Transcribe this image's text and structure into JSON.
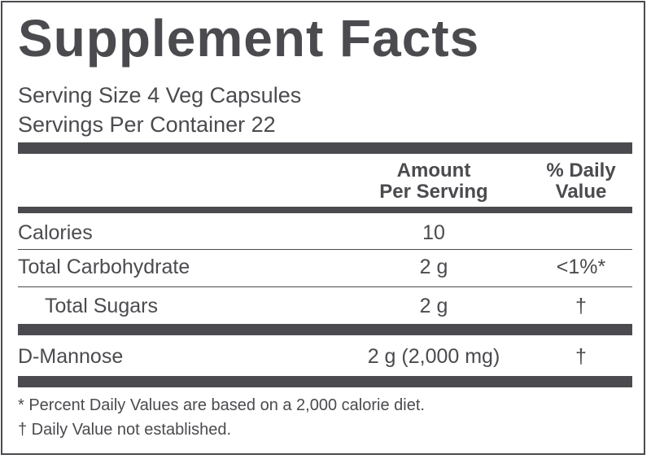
{
  "title": "Supplement Facts",
  "serving_size": "Serving Size 4 Veg Capsules",
  "servings_per_container": "Servings Per Container 22",
  "header": {
    "amount_line1": "Amount",
    "amount_line2": "Per Serving",
    "dv_line1": "% Daily",
    "dv_line2": "Value"
  },
  "rows": [
    {
      "name": "Calories",
      "amount": "10",
      "dv": ""
    },
    {
      "name": "Total Carbohydrate",
      "amount": "2 g",
      "dv": "<1%*"
    },
    {
      "name": "Total Sugars",
      "amount": "2 g",
      "dv": "†"
    },
    {
      "name": "D-Mannose",
      "amount": "2 g (2,000 mg)",
      "dv": "†"
    }
  ],
  "footnotes": [
    "* Percent Daily Values are based on a 2,000 calorie diet.",
    "† Daily Value not established."
  ],
  "colors": {
    "ink": "#4b4b4f",
    "background": "#ffffff"
  }
}
